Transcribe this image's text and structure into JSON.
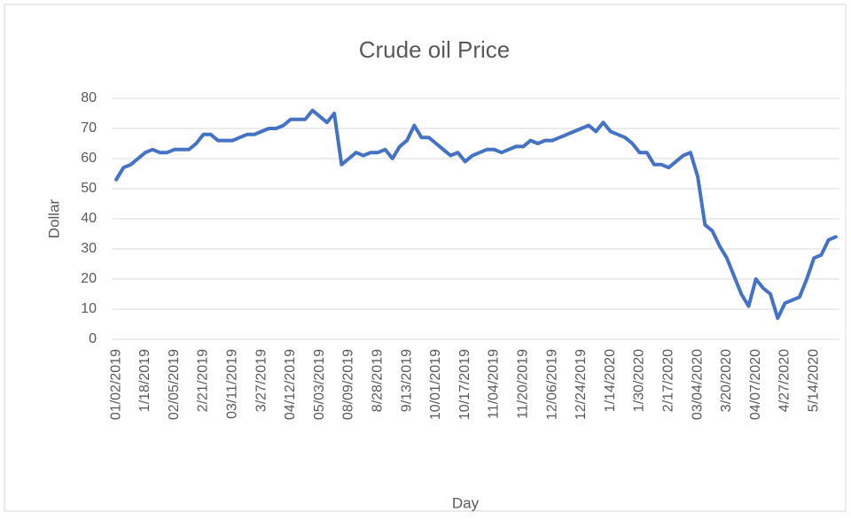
{
  "chart_data": {
    "type": "line",
    "title": "Crude oil Price",
    "x_label": "Day",
    "y_label": "Dollar",
    "categories": [
      "01/02/2019",
      null,
      null,
      null,
      "1/18/2019",
      null,
      null,
      null,
      "02/05/2019",
      null,
      null,
      null,
      "2/21/2019",
      null,
      null,
      null,
      "03/11/2019",
      null,
      null,
      null,
      "3/27/2019",
      null,
      null,
      null,
      "04/12/2019",
      null,
      null,
      null,
      "05/03/2019",
      null,
      null,
      null,
      "08/09/2019",
      null,
      null,
      null,
      "8/28/2019",
      null,
      null,
      null,
      "9/13/2019",
      null,
      null,
      null,
      "10/01/2019",
      null,
      null,
      null,
      "10/17/2019",
      null,
      null,
      null,
      "11/04/2019",
      null,
      null,
      null,
      "11/20/2019",
      null,
      null,
      null,
      "12/06/2019",
      null,
      null,
      null,
      "12/24/2019",
      null,
      null,
      null,
      "1/14/2020",
      null,
      null,
      null,
      "1/30/2020",
      null,
      null,
      null,
      "2/17/2020",
      null,
      null,
      null,
      "03/04/2020",
      null,
      null,
      null,
      "3/20/2020",
      null,
      null,
      null,
      "04/07/2020",
      null,
      null,
      null,
      "4/27/2020",
      null,
      null,
      null,
      "5/14/2020",
      null,
      null,
      null
    ],
    "values": [
      53,
      57,
      58,
      60,
      62,
      63,
      62,
      62,
      63,
      63,
      63,
      65,
      68,
      68,
      66,
      66,
      66,
      67,
      68,
      68,
      69,
      70,
      70,
      71,
      73,
      73,
      73,
      76,
      74,
      72,
      75,
      58,
      60,
      62,
      61,
      62,
      62,
      63,
      60,
      64,
      66,
      71,
      67,
      67,
      65,
      63,
      61,
      62,
      59,
      61,
      62,
      63,
      63,
      62,
      63,
      64,
      64,
      66,
      65,
      66,
      66,
      67,
      68,
      69,
      70,
      71,
      69,
      72,
      69,
      68,
      67,
      65,
      62,
      62,
      58,
      58,
      57,
      59,
      61,
      62,
      54,
      38,
      36,
      31,
      27,
      21,
      15,
      11,
      20,
      17,
      15,
      7,
      12,
      13,
      14,
      20,
      27,
      28,
      33,
      34
    ],
    "color": "#4472c4",
    "ylim": [
      0,
      80
    ],
    "yticks": [
      0,
      10,
      20,
      30,
      40,
      50,
      60,
      70,
      80
    ],
    "grid": true
  }
}
